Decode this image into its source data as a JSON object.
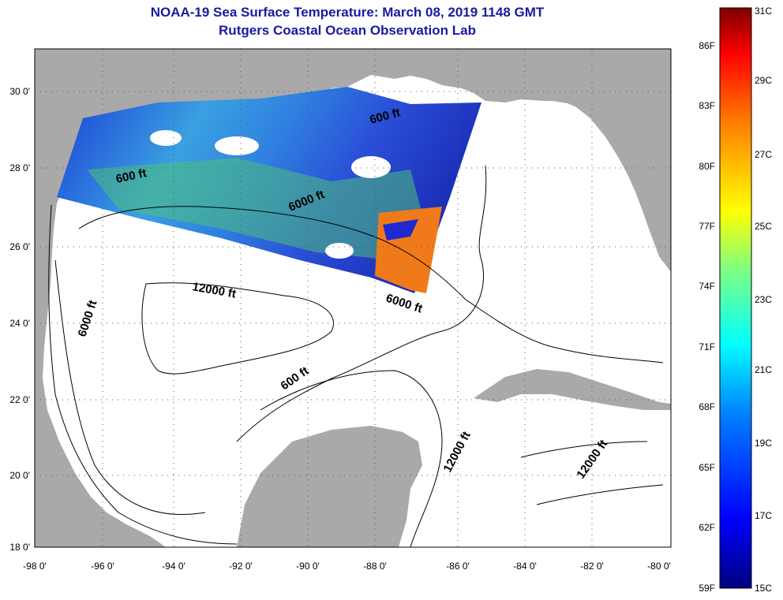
{
  "title": "NOAA-19 Sea Surface Temperature:  March 08, 2019 1148 GMT",
  "subtitle": "Rutgers Coastal Ocean Observation Lab",
  "lat_labels": [
    "30 0'",
    "28 0'",
    "26 0'",
    "24 0'",
    "22 0'",
    "20 0'",
    "18 0'"
  ],
  "lon_labels": [
    "-98 0'",
    "-96 0'",
    "-94 0'",
    "-92 0'",
    "-90 0'",
    "-88 0'",
    "-86 0'",
    "-84 0'",
    "-82 0'",
    "-80 0'"
  ],
  "contour_labels": [
    "600 ft",
    "600 ft",
    "6000 ft",
    "12000 ft",
    "6000 ft",
    "6000 ft",
    "600 ft",
    "12000 ft",
    "12000 ft"
  ],
  "colorbar": {
    "f_labels": [
      "86F",
      "83F",
      "80F",
      "77F",
      "74F",
      "71F",
      "68F",
      "65F",
      "62F",
      "59F"
    ],
    "c_labels": [
      "31C",
      "29C",
      "27C",
      "25C",
      "23C",
      "21C",
      "19C",
      "17C",
      "15C"
    ],
    "colors": [
      "#00007f",
      "#0000ff",
      "#0080ff",
      "#00ffff",
      "#80ff80",
      "#ffff00",
      "#ff8000",
      "#ff0000",
      "#7f0000"
    ]
  },
  "colors": {
    "land": "#a9a9a9",
    "title": "#1a1aa0"
  }
}
